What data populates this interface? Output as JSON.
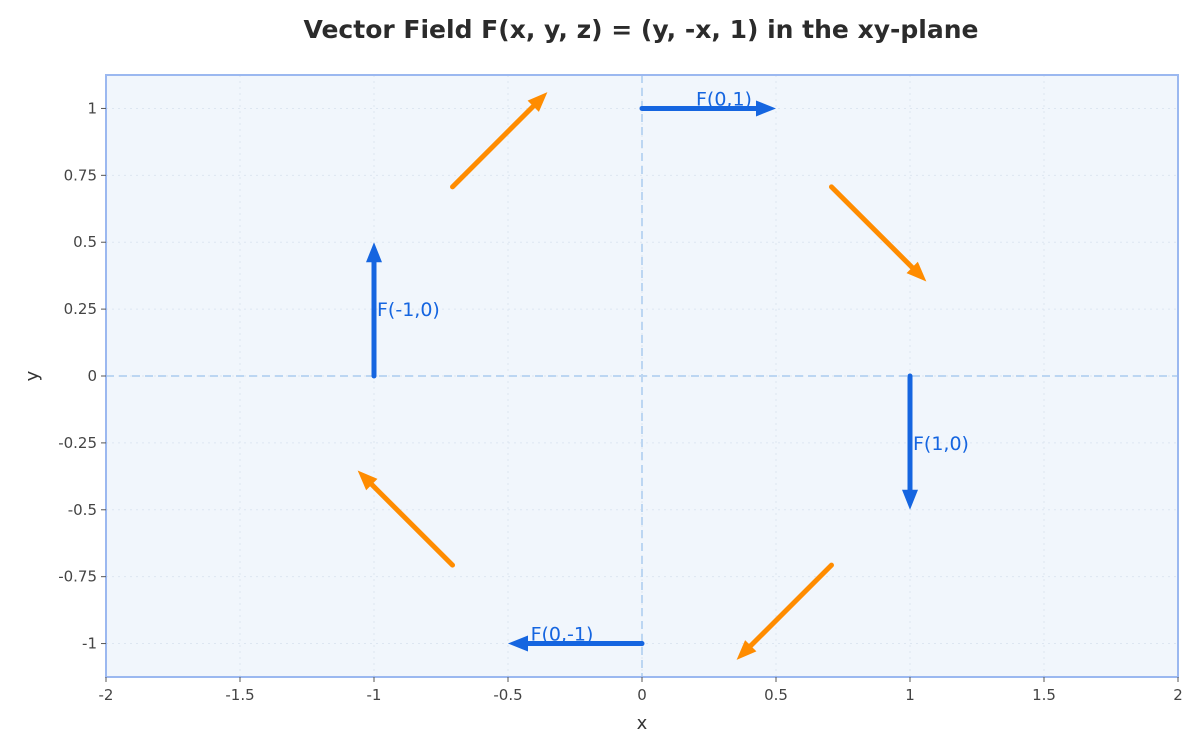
{
  "chart_data": {
    "type": "quiver",
    "title": "Vector Field F(x, y, z) = (y, -x, 1) in the xy-plane",
    "xlabel": "x",
    "ylabel": "y",
    "xlim": [
      -2,
      2
    ],
    "ylim": [
      -1.125,
      1.125
    ],
    "xticks": [
      -2,
      -1.5,
      -1,
      -0.5,
      0,
      0.5,
      1,
      1.5,
      2
    ],
    "xtick_labels": [
      "-2",
      "-1.5",
      "-1",
      "-0.5",
      "0",
      "0.5",
      "1",
      "1.5",
      "2"
    ],
    "yticks": [
      -1,
      -0.75,
      -0.5,
      -0.25,
      0,
      0.25,
      0.5,
      0.75,
      1
    ],
    "ytick_labels": [
      "-1",
      "-0.75",
      "-0.5",
      "-0.25",
      "0",
      "0.25",
      "0.5",
      "0.75",
      "1"
    ],
    "grid": true,
    "reference_lines": {
      "x": 0,
      "y": 0
    },
    "colors": {
      "highlight": "#1565e0",
      "secondary": "#ff8c00",
      "plot_background": "#f1f6fc",
      "frame": "#9bb8f0",
      "reference": "#bcd6f2"
    },
    "vectors": [
      {
        "x": 0,
        "y": 1,
        "u": 0.5,
        "v": 0,
        "label": "F(0,1)",
        "color": "#1565e0"
      },
      {
        "x": 1,
        "y": 0,
        "u": 0,
        "v": -0.5,
        "label": "F(1,0)",
        "color": "#1565e0"
      },
      {
        "x": 0,
        "y": -1,
        "u": -0.5,
        "v": 0,
        "label": "F(0,-1)",
        "color": "#1565e0"
      },
      {
        "x": -1,
        "y": 0,
        "u": 0,
        "v": 0.5,
        "label": "F(-1,0)",
        "color": "#1565e0"
      },
      {
        "x": -0.707,
        "y": 0.707,
        "u": 0.354,
        "v": 0.354,
        "label": "",
        "color": "#ff8c00"
      },
      {
        "x": 0.707,
        "y": 0.707,
        "u": 0.354,
        "v": -0.354,
        "label": "",
        "color": "#ff8c00"
      },
      {
        "x": 0.707,
        "y": -0.707,
        "u": -0.354,
        "v": -0.354,
        "label": "",
        "color": "#ff8c00"
      },
      {
        "x": -0.707,
        "y": -0.707,
        "u": -0.354,
        "v": 0.354,
        "label": "",
        "color": "#ff8c00"
      }
    ]
  }
}
